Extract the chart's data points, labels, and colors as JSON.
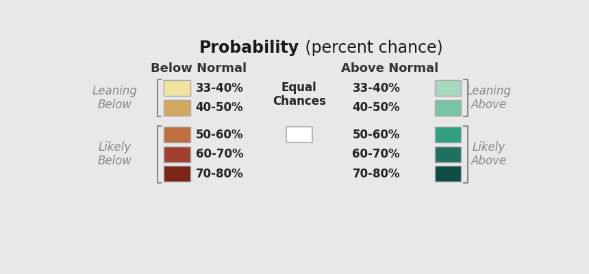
{
  "title_bold": "Probability",
  "title_normal": " (percent chance)",
  "bg_color": "#e8e8e8",
  "below_normal_label": "Below Normal",
  "above_normal_label": "Above Normal",
  "equal_chances_label": "Equal\nChances",
  "leaning_below_label": "Leaning\nBelow",
  "leaning_above_label": "Leaning\nAbove",
  "likely_below_label": "Likely\nBelow",
  "likely_above_label": "Likely\nAbove",
  "below_colors": [
    "#f0e4a0",
    "#d4a860",
    "#c07040",
    "#a04030",
    "#7a2515"
  ],
  "above_colors": [
    "#a8d8c0",
    "#78c4a4",
    "#30a080",
    "#207060",
    "#0d4d44"
  ],
  "pct_labels": [
    "33-40%",
    "40-50%",
    "50-60%",
    "60-70%",
    "70-80%"
  ],
  "equal_color": "#ffffff",
  "bracket_color": "#888888",
  "label_color": "#888888",
  "header_color": "#333333"
}
